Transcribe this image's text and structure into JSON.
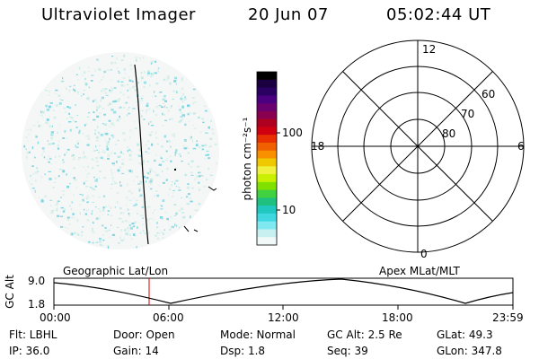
{
  "header": {
    "title": "Ultraviolet Imager",
    "date": "20 Jun 07",
    "time": "05:02:44 UT"
  },
  "colorbar": {
    "label": "photon cm⁻²s⁻¹",
    "ticks": [
      "100",
      "10"
    ],
    "colors": [
      "#000000",
      "#1a0040",
      "#2a0060",
      "#4a0080",
      "#6a0070",
      "#8a0050",
      "#b00020",
      "#d00010",
      "#e83000",
      "#f06000",
      "#f89000",
      "#f0c800",
      "#f0f040",
      "#c8f000",
      "#80e000",
      "#40d040",
      "#20c080",
      "#20c8c0",
      "#40d8e0",
      "#80e8f0",
      "#c8f0f0",
      "#f0f8f8"
    ]
  },
  "polar": {
    "mlt_labels": {
      "top": "12",
      "left": "18",
      "right": "6",
      "bottom": "0"
    },
    "mlat_labels": [
      "60",
      "70",
      "80"
    ]
  },
  "altitude_plot": {
    "left_label": "Geographic Lat/Lon",
    "right_label": "Apex MLat/MLT",
    "y_axis_label": "GC Alt",
    "y_ticks": [
      "9.0",
      "1.8"
    ],
    "x_ticks": [
      "00:00",
      "06:00",
      "12:00",
      "18:00",
      "23:59"
    ]
  },
  "info": {
    "flt": "Flt: LBHL",
    "ip": "IP: 36.0",
    "door": "Door: Open",
    "gain": "Gain: 14",
    "mode": "Mode: Normal",
    "dsp": "Dsp:    1.8",
    "gc_alt": "GC Alt: 2.5 Re",
    "seq": "Seq: 39",
    "glat": "GLat:   49.3",
    "glon": "GLon: 347.8"
  }
}
